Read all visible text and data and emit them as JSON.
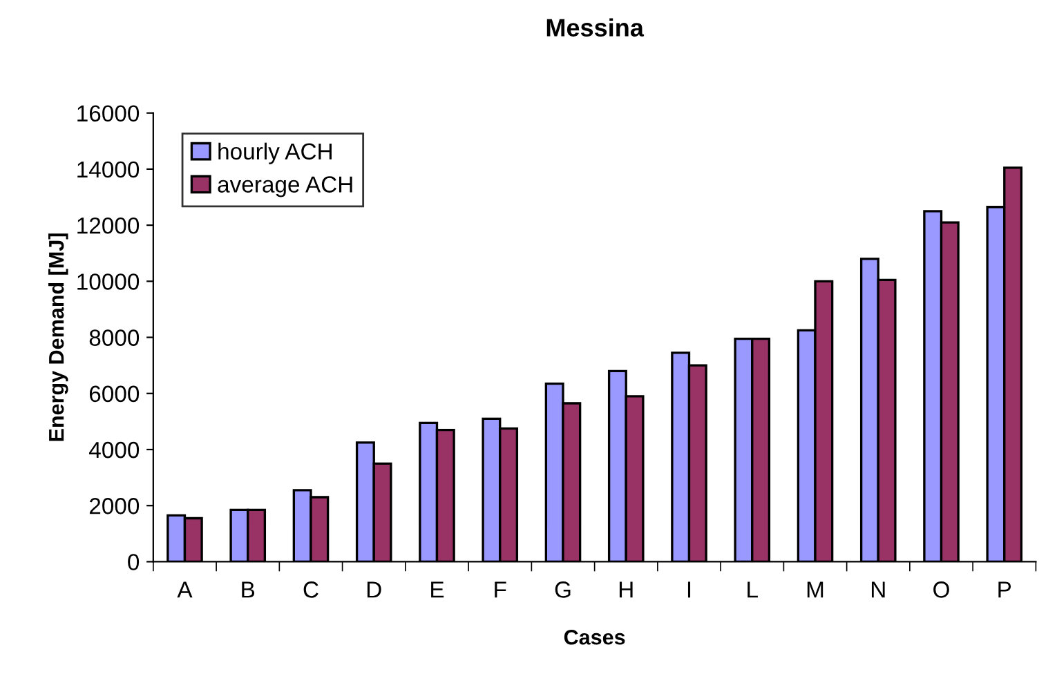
{
  "chart_data": {
    "type": "bar",
    "title": "Messina",
    "xlabel": "Cases",
    "ylabel": "Energy Demand [MJ]",
    "categories": [
      "A",
      "B",
      "C",
      "D",
      "E",
      "F",
      "G",
      "H",
      "I",
      "L",
      "M",
      "N",
      "O",
      "P"
    ],
    "series": [
      {
        "name": "hourly ACH",
        "color": "#9999ff",
        "values": [
          1650,
          1850,
          2550,
          4250,
          4950,
          5100,
          6350,
          6800,
          7450,
          7950,
          8250,
          10800,
          12500,
          12650
        ]
      },
      {
        "name": "average ACH",
        "color": "#993366",
        "values": [
          1550,
          1850,
          2300,
          3500,
          4700,
          4750,
          5650,
          5900,
          7000,
          7950,
          10000,
          10050,
          12100,
          14050
        ]
      }
    ],
    "ylim": [
      0,
      16000
    ],
    "yticks": [
      0,
      2000,
      4000,
      6000,
      8000,
      10000,
      12000,
      14000,
      16000
    ],
    "grid": false,
    "legend": "top left"
  }
}
